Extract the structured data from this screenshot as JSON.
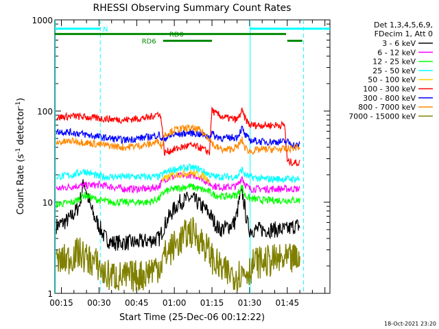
{
  "chart_data": {
    "type": "line",
    "title": "RHESSI Observing Summary Count Rates",
    "xlabel": "Start Time (25-Dec-06 00:12:22)",
    "ylabel_main": "Count Rate (s",
    "ylabel_sup1": "-1",
    "ylabel_mid": " detector",
    "ylabel_sup2": "-1",
    "ylabel_end": ")",
    "y_scale": "log",
    "ylim": [
      1,
      1000
    ],
    "y_ticks": [
      "1",
      "10",
      "100",
      "1000"
    ],
    "xlim_minutes": [
      12.4,
      122
    ],
    "x_ticks": [
      {
        "label": "00:15",
        "minute": 15
      },
      {
        "label": "00:30",
        "minute": 30
      },
      {
        "label": "00:45",
        "minute": 45
      },
      {
        "label": "01:00",
        "minute": 60
      },
      {
        "label": "01:15",
        "minute": 75
      },
      {
        "label": "01:30",
        "minute": 90
      },
      {
        "label": "01:45",
        "minute": 105
      }
    ],
    "legend_placement": "right",
    "legend_header": [
      "Det 1,3,4,5,6,9,",
      "FDecim 1, Att 0"
    ],
    "series": [
      {
        "name": "3 - 6 keV",
        "color": "#000000",
        "x": [
          13,
          16,
          18,
          20,
          22,
          24,
          26,
          28,
          30,
          32,
          35,
          40,
          45,
          50,
          54,
          56,
          58,
          60,
          62,
          64,
          66,
          68,
          70,
          72,
          74,
          76,
          78,
          80,
          82,
          84,
          85,
          86,
          87,
          88,
          89,
          90,
          92,
          95,
          100,
          105,
          108,
          110
        ],
        "y": [
          5.5,
          6,
          6.5,
          7.5,
          9,
          17,
          10,
          7,
          5.5,
          4.2,
          3.6,
          3.6,
          3.6,
          3.8,
          4,
          5.5,
          7,
          8.5,
          10,
          10.5,
          11,
          10.5,
          9.5,
          8.5,
          7.5,
          6,
          5,
          5.2,
          5.5,
          6,
          7.5,
          11,
          13,
          9,
          6,
          5,
          5,
          5,
          5,
          5,
          5.5,
          5.5
        ]
      },
      {
        "name": "6 - 12 keV",
        "color": "#FF00FF",
        "x": [
          13,
          20,
          30,
          40,
          50,
          54,
          56,
          60,
          66,
          70,
          74,
          76,
          80,
          85,
          87,
          88,
          90,
          95,
          105,
          108,
          110
        ],
        "y": [
          14,
          15,
          15.5,
          14,
          14,
          15,
          18,
          19,
          20,
          19,
          16,
          15,
          14.5,
          15,
          19,
          16,
          14,
          14,
          14,
          14,
          14
        ]
      },
      {
        "name": "12 - 25 keV",
        "color": "#00FF00",
        "x": [
          13,
          20,
          24,
          28,
          30,
          35,
          40,
          45,
          50,
          54,
          56,
          60,
          66,
          70,
          74,
          76,
          80,
          85,
          87,
          88,
          90,
          95,
          105,
          108,
          110
        ],
        "y": [
          9.5,
          10,
          12,
          11,
          10.5,
          10,
          10,
          10,
          10,
          11,
          13,
          14,
          15,
          14,
          13,
          12,
          11.5,
          12,
          15,
          12,
          11,
          10.5,
          10.5,
          10.5,
          10.5
        ]
      },
      {
        "name": "25 - 50 keV",
        "color": "#00FFFF",
        "x": [
          13,
          20,
          24,
          28,
          30,
          40,
          50,
          54,
          56,
          60,
          66,
          70,
          74,
          76,
          80,
          85,
          87,
          88,
          90,
          95,
          105,
          108,
          110
        ],
        "y": [
          19,
          20,
          22,
          20,
          19,
          19,
          19,
          19,
          21,
          23,
          24,
          23,
          20,
          19,
          19,
          19,
          23,
          20,
          19,
          18,
          18,
          18,
          18
        ]
      },
      {
        "name": "50 - 100 keV",
        "color": "#FFCC00",
        "x": [
          55,
          56,
          60,
          66,
          70,
          72,
          74
        ],
        "y": [
          17,
          18,
          20,
          21,
          20,
          19,
          17
        ]
      },
      {
        "name": "100 - 300 keV",
        "color": "#FF0000",
        "x": [
          13,
          20,
          30,
          40,
          50,
          54,
          55,
          56,
          60,
          66,
          70,
          74,
          75,
          76,
          80,
          85,
          87,
          88,
          90,
          92,
          95,
          100,
          104,
          105,
          108,
          110
        ],
        "y": [
          85,
          88,
          83,
          80,
          85,
          95,
          75,
          35,
          38,
          42,
          40,
          35,
          105,
          95,
          85,
          80,
          100,
          85,
          70,
          70,
          70,
          70,
          70,
          28,
          27,
          27
        ]
      },
      {
        "name": "300 - 800 keV",
        "color": "#0000FF",
        "x": [
          13,
          20,
          30,
          40,
          50,
          54,
          55,
          56,
          60,
          66,
          70,
          74,
          75,
          76,
          80,
          85,
          87,
          88,
          90,
          95,
          105,
          108,
          110
        ],
        "y": [
          60,
          58,
          52,
          48,
          52,
          55,
          48,
          50,
          55,
          58,
          56,
          52,
          58,
          53,
          50,
          52,
          65,
          55,
          48,
          46,
          46,
          42,
          42
        ]
      },
      {
        "name": "800 - 7000 keV",
        "color": "#FF8800",
        "x": [
          13,
          20,
          30,
          40,
          50,
          54,
          55,
          56,
          60,
          66,
          70,
          74,
          75,
          76,
          80,
          85,
          87,
          88,
          90,
          95,
          105,
          108,
          110
        ],
        "y": [
          45,
          47,
          43,
          40,
          43,
          47,
          40,
          55,
          62,
          65,
          62,
          50,
          45,
          41,
          37,
          40,
          48,
          40,
          36,
          38,
          38,
          40,
          40
        ]
      },
      {
        "name": "7000 - 15000 keV",
        "color": "#808000",
        "x": [
          13,
          18,
          20,
          22,
          25,
          28,
          30,
          32,
          40,
          48,
          50,
          54,
          55,
          56,
          60,
          64,
          66,
          68,
          70,
          72,
          74,
          76,
          80,
          85,
          90,
          92,
          95,
          100,
          105,
          110
        ],
        "y": [
          2.2,
          2.4,
          2.6,
          2.8,
          2.4,
          2.2,
          2.0,
          1.6,
          1.5,
          1.6,
          1.8,
          2.0,
          2.2,
          2.6,
          3.3,
          4.2,
          4.8,
          4.5,
          4.0,
          3.4,
          2.8,
          2.2,
          1.7,
          1.6,
          1.8,
          2.2,
          2.2,
          2.3,
          2.3,
          2.4
        ]
      }
    ],
    "state_bars": [
      {
        "label": "N",
        "color": "#00FFFF",
        "segments": [
          [
            12.4,
            30.5
          ],
          [
            90,
            122
          ]
        ],
        "value": 800
      },
      {
        "label": "RD0",
        "color": "#008800",
        "segments": [
          [
            12.4,
            75
          ],
          [
            75,
            104.5
          ]
        ],
        "value": 700
      },
      {
        "label": "RD6",
        "color": "#008800",
        "segments": [
          [
            55.5,
            75
          ],
          [
            105,
            111
          ]
        ],
        "value": 590
      }
    ],
    "vertical_markers": {
      "solid_cyan": [
        12.6,
        90.2
      ],
      "dashed_cyan": [
        30.5,
        111.5
      ]
    },
    "footer_timestamp": "18-Oct-2021 23:20"
  }
}
